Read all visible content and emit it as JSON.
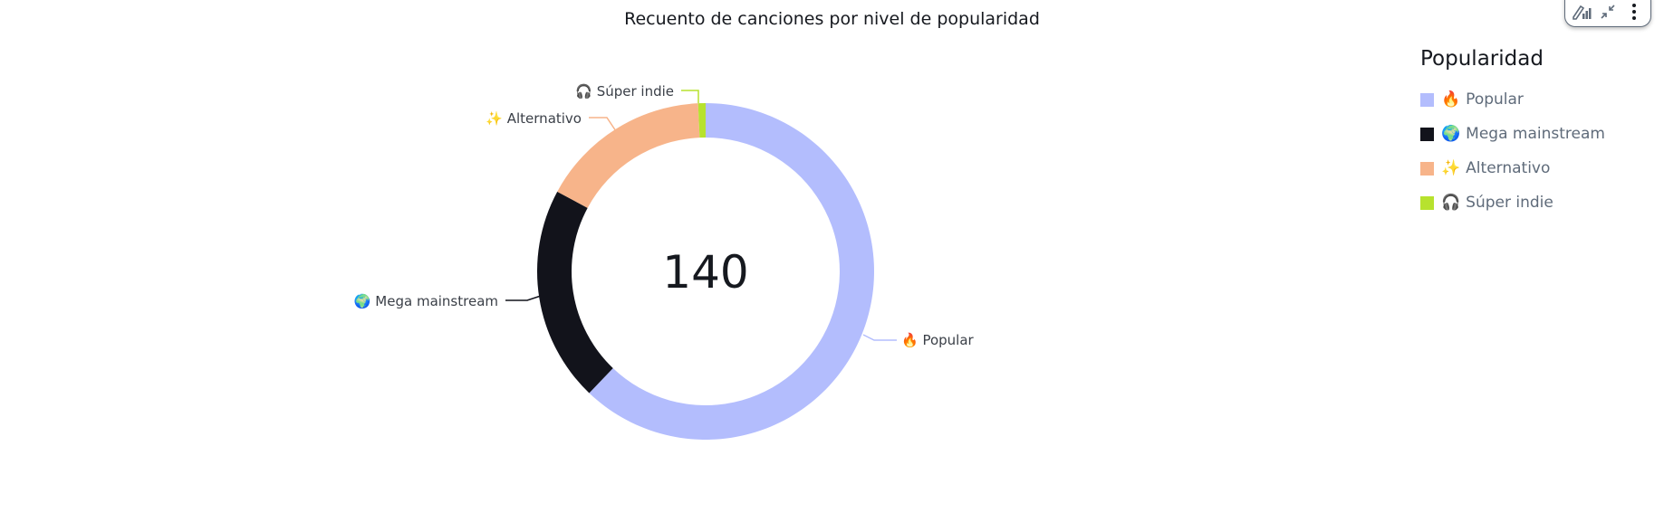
{
  "chart_data": {
    "type": "pie",
    "variant": "donut",
    "title": "Recuento de canciones por nivel de popularidad",
    "center_label": "140",
    "total": 140,
    "categories": [
      "🔥 Popular",
      "🌍 Mega mainstream",
      "✨ Alternativo",
      "🎧 Súper indie"
    ],
    "values": [
      87,
      29,
      23,
      1
    ],
    "colors": [
      "#b3bdfd",
      "#12131b",
      "#f7b48a",
      "#b7e22e"
    ],
    "legend_title": "Popularidad",
    "legend_position": "right"
  },
  "title": "Recuento de canciones por nivel de popularidad",
  "center_value": "140",
  "slice_labels": {
    "popular": "🔥 Popular",
    "mega": "🌍 Mega mainstream",
    "alternativo": "✨ Alternativo",
    "indie": "🎧 Súper indie"
  },
  "legend": {
    "title": "Popularidad",
    "items": [
      {
        "emoji": "🔥",
        "label": "Popular",
        "color": "#b3bdfd"
      },
      {
        "emoji": "🌍",
        "label": "Mega mainstream",
        "color": "#12131b"
      },
      {
        "emoji": "✨",
        "label": "Alternativo",
        "color": "#f7b48a"
      },
      {
        "emoji": "🎧",
        "label": "Súper indie",
        "color": "#b7e22e"
      }
    ]
  },
  "toolbar": {
    "icons": [
      "edit-chart-icon",
      "collapse-icon",
      "more-options-icon"
    ]
  }
}
